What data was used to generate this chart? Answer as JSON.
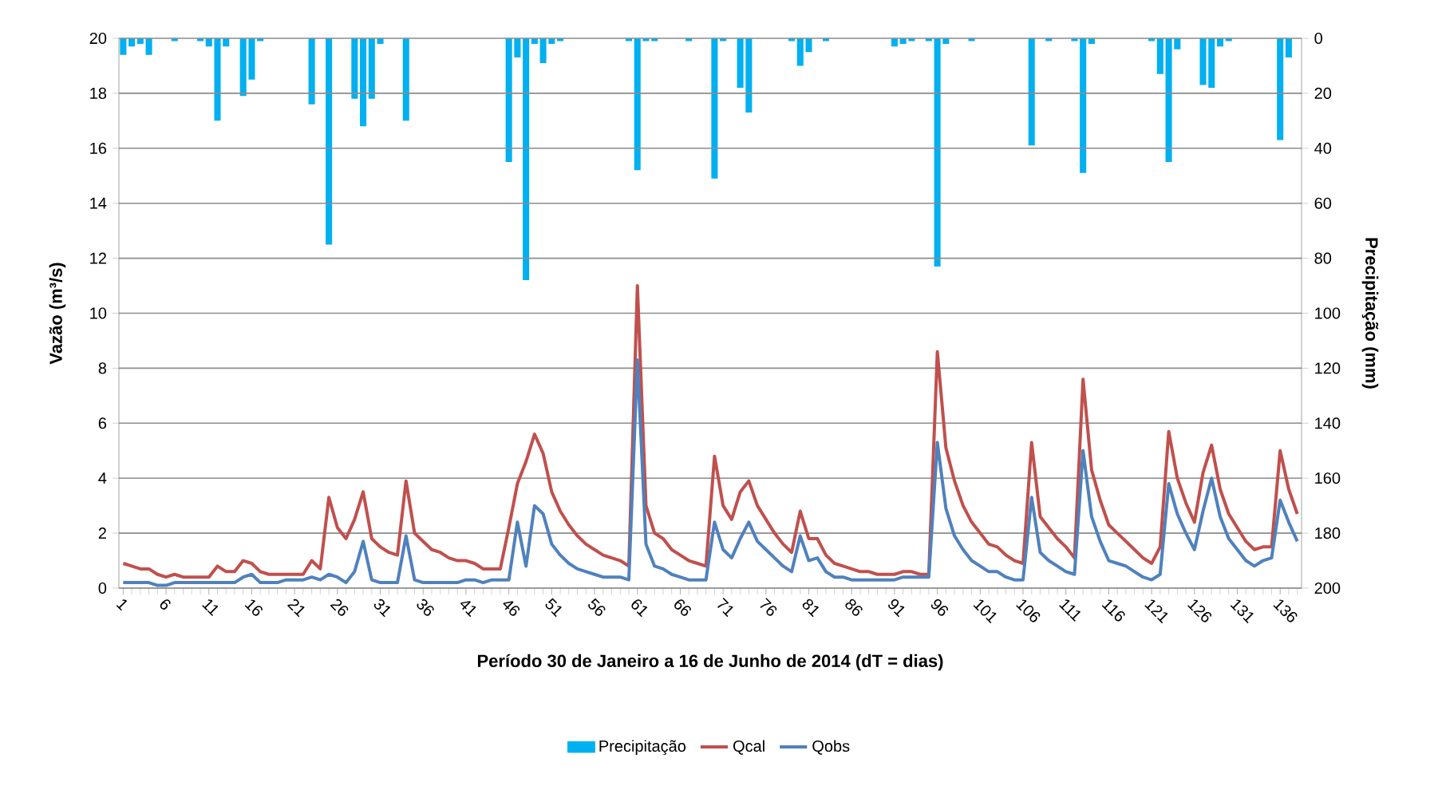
{
  "chart_data": {
    "type": "line",
    "xlabel": "Período 30 de Janeiro a 16 de Junho de 2014 (dT = dias)",
    "ylabel": "Vazão (m³/s)",
    "y2label": "Precipitação (mm)",
    "categories": [
      "1",
      null,
      null,
      null,
      null,
      "6",
      null,
      null,
      null,
      null,
      "11",
      null,
      null,
      null,
      null,
      "16",
      null,
      null,
      null,
      null,
      "21",
      null,
      null,
      null,
      null,
      "26",
      null,
      null,
      null,
      null,
      "31",
      null,
      null,
      null,
      null,
      "36",
      null,
      null,
      null,
      null,
      "41",
      null,
      null,
      null,
      null,
      "46",
      null,
      null,
      null,
      null,
      "51",
      null,
      null,
      null,
      null,
      "56",
      null,
      null,
      null,
      null,
      "61",
      null,
      null,
      null,
      null,
      "66",
      null,
      null,
      null,
      null,
      "71",
      null,
      null,
      null,
      null,
      "76",
      null,
      null,
      null,
      null,
      "81",
      null,
      null,
      null,
      null,
      "86",
      null,
      null,
      null,
      null,
      "91",
      null,
      null,
      null,
      null,
      "96",
      null,
      null,
      null,
      null,
      "101",
      null,
      null,
      null,
      null,
      "106",
      null,
      null,
      null,
      null,
      "111",
      null,
      null,
      null,
      null,
      "116",
      null,
      null,
      null,
      null,
      "121",
      null,
      null,
      null,
      null,
      "126",
      null,
      null,
      null,
      null,
      "131",
      null,
      null,
      null,
      null,
      "136",
      null,
      null
    ],
    "series": [
      {
        "name": "Precipitação",
        "type": "bar",
        "axis": "y2",
        "color": "#00b0f0",
        "values": [
          6,
          3,
          2,
          6,
          0,
          0,
          1,
          0,
          0,
          1,
          3,
          30,
          3,
          0,
          21,
          15,
          1,
          0,
          0,
          0,
          0,
          0,
          24,
          0,
          75,
          0,
          0,
          22,
          32,
          22,
          2,
          0,
          0,
          30,
          0,
          0,
          0,
          0,
          0,
          0,
          0,
          0,
          0,
          0,
          0,
          45,
          7,
          88,
          2,
          9,
          2,
          1,
          0,
          0,
          0,
          0,
          0,
          0,
          0,
          1,
          48,
          1,
          1,
          0,
          0,
          0,
          1,
          0,
          0,
          51,
          1,
          0,
          18,
          27,
          0,
          0,
          0,
          0,
          1,
          10,
          5,
          0,
          1,
          0,
          0,
          0,
          0,
          0,
          0,
          0,
          3,
          2,
          1,
          0,
          1,
          83,
          2,
          0,
          0,
          1,
          0,
          0,
          0,
          0,
          0,
          0,
          39,
          0,
          1,
          0,
          0,
          1,
          49,
          2,
          0,
          0,
          0,
          0,
          0,
          0,
          1,
          13,
          45,
          4,
          0,
          0,
          17,
          18,
          3,
          1,
          0,
          0,
          0,
          0,
          0,
          37,
          7,
          0
        ]
      },
      {
        "name": "Qcal",
        "color": "#c0504d",
        "values": [
          0.9,
          0.8,
          0.7,
          0.7,
          0.5,
          0.4,
          0.5,
          0.4,
          0.4,
          0.4,
          0.4,
          0.8,
          0.6,
          0.6,
          1.0,
          0.9,
          0.6,
          0.5,
          0.5,
          0.5,
          0.5,
          0.5,
          1.0,
          0.7,
          3.3,
          2.2,
          1.8,
          2.5,
          3.5,
          1.8,
          1.5,
          1.3,
          1.2,
          3.9,
          2.0,
          1.7,
          1.4,
          1.3,
          1.1,
          1.0,
          1.0,
          0.9,
          0.7,
          0.7,
          0.7,
          2.2,
          3.8,
          4.6,
          5.6,
          4.9,
          3.5,
          2.8,
          2.3,
          1.9,
          1.6,
          1.4,
          1.2,
          1.1,
          1.0,
          0.8,
          11.0,
          3.0,
          2.0,
          1.8,
          1.4,
          1.2,
          1.0,
          0.9,
          0.8,
          4.8,
          3.0,
          2.5,
          3.5,
          3.9,
          3.0,
          2.5,
          2.0,
          1.6,
          1.3,
          2.8,
          1.8,
          1.8,
          1.2,
          0.9,
          0.8,
          0.7,
          0.6,
          0.6,
          0.5,
          0.5,
          0.5,
          0.6,
          0.6,
          0.5,
          0.5,
          8.6,
          5.1,
          3.9,
          3.0,
          2.4,
          2.0,
          1.6,
          1.5,
          1.2,
          1.0,
          0.9,
          5.3,
          2.6,
          2.2,
          1.8,
          1.5,
          1.1,
          7.6,
          4.3,
          3.2,
          2.3,
          2.0,
          1.7,
          1.4,
          1.1,
          0.9,
          1.5,
          5.7,
          4.0,
          3.1,
          2.4,
          4.2,
          5.2,
          3.6,
          2.7,
          2.2,
          1.7,
          1.4,
          1.5,
          1.5,
          5.0,
          3.6,
          2.7
        ]
      },
      {
        "name": "Qobs",
        "color": "#4f81bd",
        "values": [
          0.2,
          0.2,
          0.2,
          0.2,
          0.1,
          0.1,
          0.2,
          0.2,
          0.2,
          0.2,
          0.2,
          0.2,
          0.2,
          0.2,
          0.4,
          0.5,
          0.2,
          0.2,
          0.2,
          0.3,
          0.3,
          0.3,
          0.4,
          0.3,
          0.5,
          0.4,
          0.2,
          0.6,
          1.7,
          0.3,
          0.2,
          0.2,
          0.2,
          1.9,
          0.3,
          0.2,
          0.2,
          0.2,
          0.2,
          0.2,
          0.3,
          0.3,
          0.2,
          0.3,
          0.3,
          0.3,
          2.4,
          0.8,
          3.0,
          2.7,
          1.6,
          1.2,
          0.9,
          0.7,
          0.6,
          0.5,
          0.4,
          0.4,
          0.4,
          0.3,
          8.3,
          1.6,
          0.8,
          0.7,
          0.5,
          0.4,
          0.3,
          0.3,
          0.3,
          2.4,
          1.4,
          1.1,
          1.8,
          2.4,
          1.7,
          1.4,
          1.1,
          0.8,
          0.6,
          1.9,
          1.0,
          1.1,
          0.6,
          0.4,
          0.4,
          0.3,
          0.3,
          0.3,
          0.3,
          0.3,
          0.3,
          0.4,
          0.4,
          0.4,
          0.4,
          5.3,
          2.9,
          1.9,
          1.4,
          1.0,
          0.8,
          0.6,
          0.6,
          0.4,
          0.3,
          0.3,
          3.3,
          1.3,
          1.0,
          0.8,
          0.6,
          0.5,
          5.0,
          2.6,
          1.7,
          1.0,
          0.9,
          0.8,
          0.6,
          0.4,
          0.3,
          0.5,
          3.8,
          2.7,
          2.0,
          1.4,
          2.8,
          4.0,
          2.6,
          1.8,
          1.4,
          1.0,
          0.8,
          1.0,
          1.1,
          3.2,
          2.4,
          1.7
        ]
      }
    ],
    "ylim": [
      0,
      20
    ],
    "yticks": [
      0,
      2,
      4,
      6,
      8,
      10,
      12,
      14,
      16,
      18,
      20
    ],
    "y2lim": [
      200,
      0
    ],
    "y2ticks": [
      0,
      20,
      40,
      60,
      80,
      100,
      120,
      140,
      160,
      180,
      200
    ],
    "grid": "y",
    "legend": "bottom"
  }
}
